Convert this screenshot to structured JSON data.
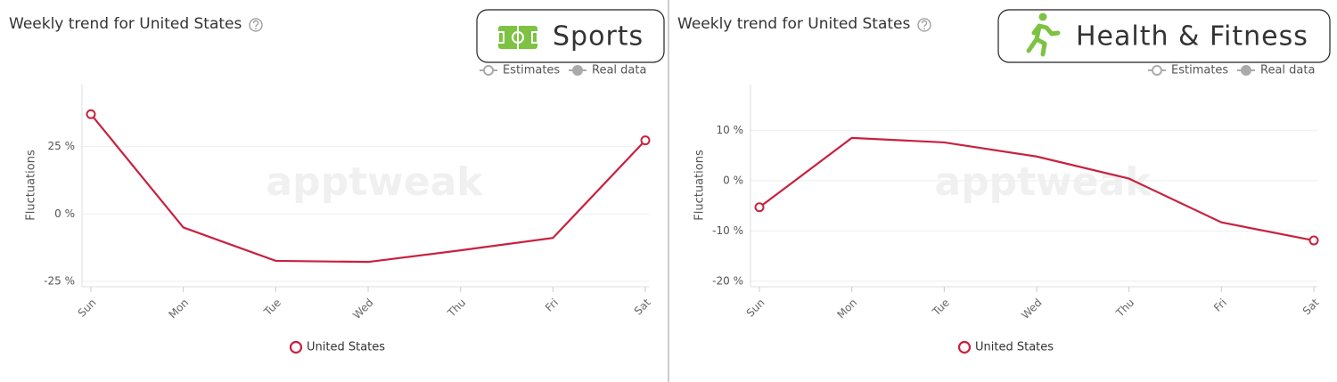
{
  "chart_data": [
    {
      "type": "line",
      "title": "Weekly trend for United States",
      "badge": "Sports",
      "y_label": "Fluctuations",
      "mode_legend": [
        "Estimates",
        "Real data"
      ],
      "watermark": "apptweak",
      "categories": [
        "Sun",
        "Mon",
        "Tue",
        "Wed",
        "Thu",
        "Fri",
        "Sat"
      ],
      "series": [
        {
          "name": "United States",
          "color": "#c8213f",
          "values": [
            37,
            -5,
            -17.4,
            -17.8,
            -13.5,
            -8.9,
            27.3
          ]
        }
      ],
      "ylim": [
        -27,
        48
      ],
      "yticks": [
        {
          "value": -25,
          "label": "-25 %"
        },
        {
          "value": 0,
          "label": "0 %"
        },
        {
          "value": 25,
          "label": "25 %"
        }
      ],
      "grid": true
    },
    {
      "type": "line",
      "title": "Weekly trend for United States",
      "badge": "Health & Fitness",
      "y_label": "Fluctuations",
      "mode_legend": [
        "Estimates",
        "Real data"
      ],
      "watermark": "apptweak",
      "categories": [
        "Sun",
        "Mon",
        "Tue",
        "Wed",
        "Thu",
        "Fri",
        "Sat"
      ],
      "series": [
        {
          "name": "United States",
          "color": "#c8213f",
          "values": [
            -5.3,
            8.5,
            7.6,
            4.8,
            0.4,
            -8.3,
            -11.9
          ]
        }
      ],
      "ylim": [
        -21.1,
        19.1
      ],
      "yticks": [
        {
          "value": -20,
          "label": "-20 %"
        },
        {
          "value": -10,
          "label": "-10 %"
        },
        {
          "value": 0,
          "label": "0 %"
        },
        {
          "value": 10,
          "label": "10 %"
        }
      ],
      "grid": true
    }
  ]
}
